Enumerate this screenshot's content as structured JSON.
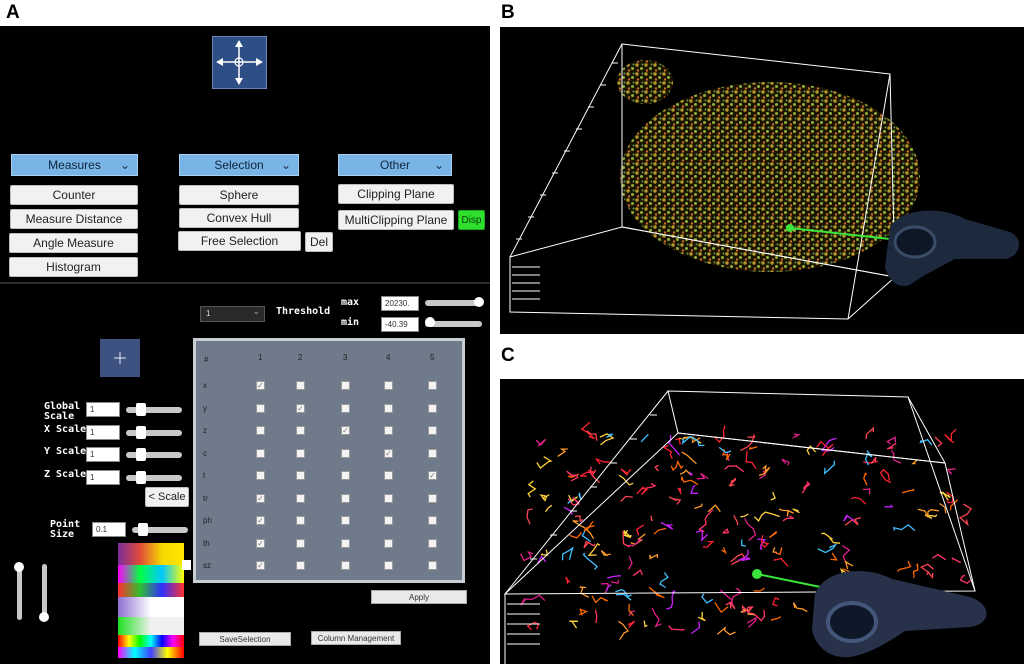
{
  "panel_labels": {
    "a": "A",
    "b": "B",
    "c": "C"
  },
  "toolbar": {
    "measures": {
      "label": "Measures",
      "items": [
        "Counter",
        "Measure Distance",
        "Angle Measure",
        "Histogram"
      ]
    },
    "selection": {
      "label": "Selection",
      "items": [
        "Sphere",
        "Convex Hull",
        "Free Selection"
      ],
      "del_label": "Del"
    },
    "other": {
      "label": "Other",
      "items": [
        "Clipping Plane",
        "MultiClipping Plane"
      ],
      "disp_label": "Disp"
    }
  },
  "threshold": {
    "select_value": "1",
    "label": "Threshold",
    "max_label": "max",
    "max_value": "20230.",
    "min_label": "min",
    "min_value": "-40.39"
  },
  "scales": {
    "global_label": "Global Scale",
    "global_value": "1",
    "x_label": "X Scale",
    "x_value": "1",
    "y_label": "Y Scale",
    "y_value": "1",
    "z_label": "Z Scale",
    "z_value": "1",
    "scale_button": "< Scale",
    "point_label": "Point Size",
    "point_value": "0.1"
  },
  "grid": {
    "corner": "#",
    "columns": [
      "1",
      "2",
      "3",
      "4",
      "5"
    ],
    "rows": [
      {
        "label": "x",
        "checked": [
          1,
          0,
          0,
          0,
          0
        ]
      },
      {
        "label": "y",
        "checked": [
          0,
          1,
          0,
          0,
          0
        ]
      },
      {
        "label": "z",
        "checked": [
          0,
          0,
          1,
          0,
          0
        ]
      },
      {
        "label": "c",
        "checked": [
          0,
          0,
          0,
          1,
          0
        ]
      },
      {
        "label": "t",
        "checked": [
          0,
          0,
          0,
          0,
          1
        ]
      },
      {
        "label": "tr",
        "checked": [
          1,
          0,
          0,
          0,
          0
        ]
      },
      {
        "label": "ph",
        "checked": [
          1,
          0,
          0,
          0,
          0
        ]
      },
      {
        "label": "th",
        "checked": [
          1,
          0,
          0,
          0,
          0
        ]
      },
      {
        "label": "sz",
        "checked": [
          1,
          0,
          0,
          0,
          0
        ]
      }
    ],
    "check_glyph": "✓",
    "apply_label": "Apply"
  },
  "bottom": {
    "save_selection": "SaveSelection",
    "column_management": "Column Management"
  },
  "colors": {
    "dropdown": "#79b4e6",
    "disp_green": "#2ee02e",
    "controller_ray": "#39e639"
  }
}
